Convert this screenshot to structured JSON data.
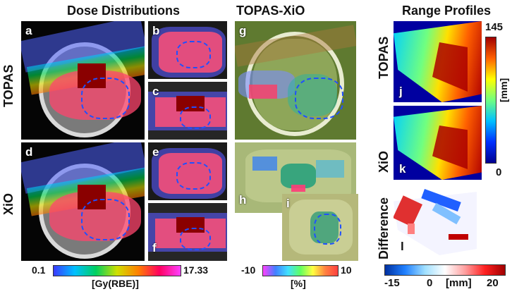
{
  "titles": {
    "dose": "Dose Distributions",
    "diff": "TOPAS-XiO",
    "range": "Range Profiles"
  },
  "row_labels": {
    "topas": "TOPAS",
    "xio": "XiO",
    "topas_range": "TOPAS",
    "xio_range": "XiO",
    "difference": "Difference"
  },
  "panel_letters": {
    "a": "a",
    "b": "b",
    "c": "c",
    "d": "d",
    "e": "e",
    "f": "f",
    "g": "g",
    "h": "h",
    "i": "i",
    "j": "j",
    "k": "k",
    "l": "l"
  },
  "colorbars": {
    "dose": {
      "min": "0.1",
      "max": "17.33",
      "unit": "[Gy(RBE)]"
    },
    "diff": {
      "min": "-10",
      "max": "10",
      "unit": "[%]"
    },
    "range": {
      "min": "0",
      "max": "145",
      "unit": "[mm]"
    },
    "range_diff": {
      "min": "-15",
      "mid": "0",
      "unit": "[mm]",
      "max": "20"
    }
  },
  "colors": {
    "dose_gradient": [
      "#3a3aff",
      "#00c0ff",
      "#00d060",
      "#d0e000",
      "#ff8000",
      "#ff0060",
      "#ff40ff"
    ],
    "diff_gradient": [
      "#ff40ff",
      "#4080ff",
      "#40e0ff",
      "#60ff60",
      "#ffff40",
      "#ff8040",
      "#ff4040"
    ],
    "range_gradient": [
      "#00008f",
      "#0030ff",
      "#00c0ff",
      "#70ff80",
      "#ffff00",
      "#ff6000",
      "#a00000"
    ],
    "range_diff_gradient": [
      "#0030a0",
      "#2080ff",
      "#a0e0ff",
      "#ffffff",
      "#ffa0a0",
      "#ff2020",
      "#a00000"
    ]
  }
}
